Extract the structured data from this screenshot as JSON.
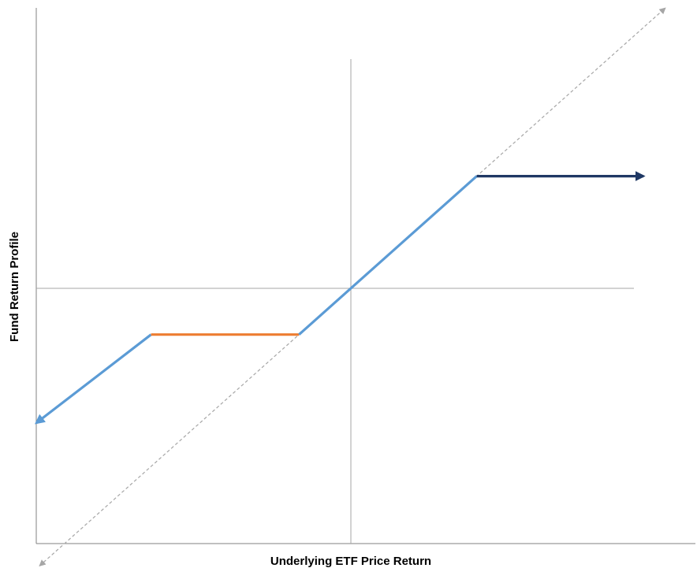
{
  "chart_data": {
    "type": "line",
    "title": "",
    "xlabel": "Underlying ETF Price Return",
    "ylabel": "Fund Return Profile",
    "xlim": [
      -100,
      100
    ],
    "ylim": [
      -100,
      100
    ],
    "grid": false,
    "reference_lines": {
      "x": 0,
      "y": 0
    },
    "series": [
      {
        "role": "underlying-reference",
        "style": "dashed",
        "arrows": "both",
        "color": "#A6A6A6",
        "x": [
          -99,
          100
        ],
        "y": [
          -99,
          100
        ]
      },
      {
        "role": "downside-beyond-buffer",
        "color": "#5B9BD5",
        "arrows": "start",
        "x": [
          -100,
          -63.5
        ],
        "y": [
          -48,
          -16.5
        ]
      },
      {
        "role": "buffer-zone",
        "color": "#ED7D31",
        "x": [
          -63.5,
          -16.5
        ],
        "y": [
          -16.5,
          -16.5
        ]
      },
      {
        "role": "participation",
        "color": "#5B9BD5",
        "x": [
          -16.5,
          40
        ],
        "y": [
          -16.5,
          40
        ]
      },
      {
        "role": "cap",
        "color": "#1F3864",
        "arrows": "end",
        "x": [
          40,
          93
        ],
        "y": [
          40,
          40
        ]
      }
    ]
  }
}
